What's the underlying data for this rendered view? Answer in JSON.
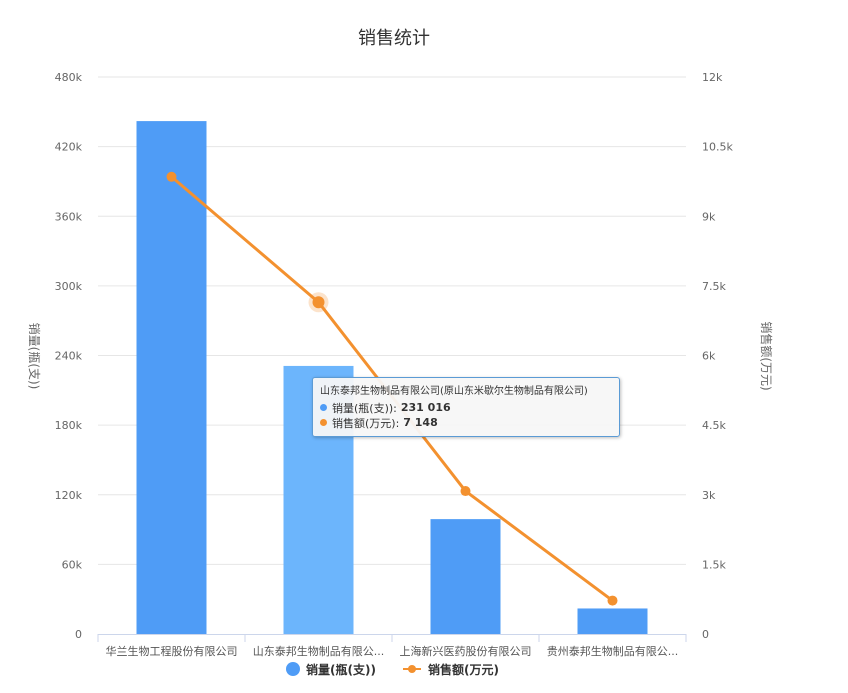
{
  "chart_data": {
    "type": "bar",
    "title": "销售统计",
    "categories": [
      "华兰生物工程股份有限公司",
      "山东泰邦生物制品有限公...",
      "上海新兴医药股份有限公司",
      "贵州泰邦生物制品有限公..."
    ],
    "series": [
      {
        "name": "销量(瓶(支))",
        "type": "bar",
        "axis": "left",
        "color": "#4f9cf6",
        "values": [
          442000,
          231016,
          99000,
          22000
        ]
      },
      {
        "name": "销售额(万元)",
        "type": "line",
        "axis": "right",
        "color": "#f3912f",
        "values": [
          9850,
          7148,
          3080,
          720
        ]
      }
    ],
    "y_left": {
      "label": "销量(瓶(支))",
      "min": 0,
      "max": 480000,
      "ticks": [
        0,
        60000,
        120000,
        180000,
        240000,
        300000,
        360000,
        420000,
        480000
      ],
      "tick_labels": [
        "0",
        "60k",
        "120k",
        "180k",
        "240k",
        "300k",
        "360k",
        "420k",
        "480k"
      ]
    },
    "y_right": {
      "label": "销售额(万元)",
      "min": 0,
      "max": 12000,
      "ticks": [
        0,
        1500,
        3000,
        4500,
        6000,
        7500,
        9000,
        10500,
        12000
      ],
      "tick_labels": [
        "0",
        "1.5k",
        "3k",
        "4.5k",
        "6k",
        "7.5k",
        "9k",
        "10.5k",
        "12k"
      ]
    },
    "grid": true,
    "legend_position": "bottom",
    "highlighted_index": 1,
    "highlight_bar_color": "#6cb5fc"
  },
  "tooltip": {
    "title": "山东泰邦生物制品有限公司(原山东米歇尔生物制品有限公司)",
    "rows": [
      {
        "label": "销量(瓶(支)):",
        "value": "231 016",
        "color": "#4f9cf6"
      },
      {
        "label": "销售额(万元):",
        "value": "7 148",
        "color": "#f3912f"
      }
    ]
  }
}
